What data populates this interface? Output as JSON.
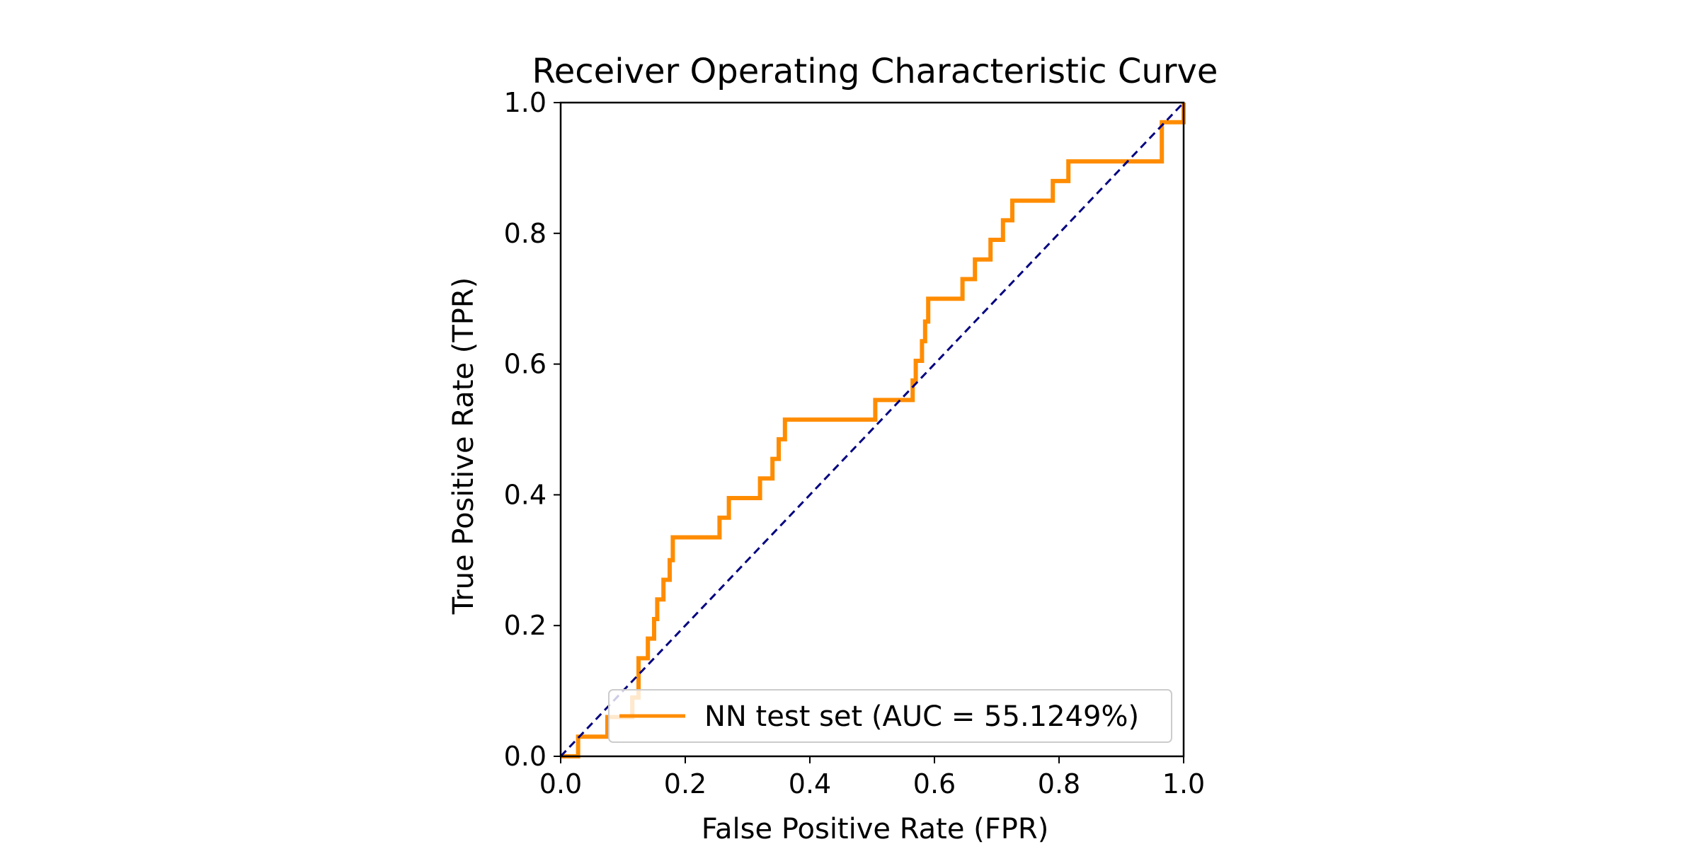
{
  "chart_data": {
    "type": "line",
    "title": "Receiver Operating Characteristic Curve",
    "xlabel": "False Positive Rate (FPR)",
    "ylabel": "True Positive Rate (TPR)",
    "xlim": [
      0.0,
      1.0
    ],
    "ylim": [
      0.0,
      1.0
    ],
    "x_ticks": [
      "0.0",
      "0.2",
      "0.4",
      "0.6",
      "0.8",
      "1.0"
    ],
    "y_ticks": [
      "0.0",
      "0.2",
      "0.4",
      "0.6",
      "0.8",
      "1.0"
    ],
    "grid": false,
    "legend_position": "lower-right",
    "series": [
      {
        "name": "NN test set (AUC = 55.1249%)",
        "color": "#ff8c00",
        "style": "solid",
        "step": true,
        "x": [
          0.0,
          0.028,
          0.028,
          0.075,
          0.075,
          0.115,
          0.115,
          0.125,
          0.125,
          0.14,
          0.14,
          0.15,
          0.15,
          0.155,
          0.155,
          0.165,
          0.165,
          0.175,
          0.175,
          0.18,
          0.18,
          0.185,
          0.185,
          0.255,
          0.255,
          0.27,
          0.27,
          0.32,
          0.32,
          0.34,
          0.34,
          0.35,
          0.35,
          0.36,
          0.36,
          0.505,
          0.505,
          0.565,
          0.565,
          0.57,
          0.57,
          0.58,
          0.58,
          0.585,
          0.585,
          0.59,
          0.59,
          0.595,
          0.595,
          0.645,
          0.645,
          0.665,
          0.665,
          0.69,
          0.69,
          0.71,
          0.71,
          0.725,
          0.725,
          0.79,
          0.79,
          0.815,
          0.815,
          0.965,
          0.965,
          0.97,
          0.97,
          1.0,
          1.0
        ],
        "y": [
          0.0,
          0.0,
          0.03,
          0.03,
          0.06,
          0.06,
          0.09,
          0.09,
          0.15,
          0.15,
          0.18,
          0.18,
          0.21,
          0.21,
          0.24,
          0.24,
          0.27,
          0.27,
          0.3,
          0.3,
          0.335,
          0.335,
          0.335,
          0.335,
          0.365,
          0.365,
          0.395,
          0.395,
          0.425,
          0.425,
          0.455,
          0.455,
          0.485,
          0.485,
          0.515,
          0.515,
          0.545,
          0.545,
          0.575,
          0.575,
          0.605,
          0.605,
          0.635,
          0.635,
          0.665,
          0.665,
          0.7,
          0.7,
          0.7,
          0.7,
          0.73,
          0.73,
          0.76,
          0.76,
          0.79,
          0.79,
          0.82,
          0.82,
          0.85,
          0.85,
          0.88,
          0.88,
          0.91,
          0.91,
          0.97,
          0.97,
          0.97,
          0.97,
          1.0
        ]
      }
    ],
    "reference_line": {
      "color": "#000080",
      "style": "dashed",
      "x": [
        0.0,
        1.0
      ],
      "y": [
        0.0,
        1.0
      ]
    }
  }
}
